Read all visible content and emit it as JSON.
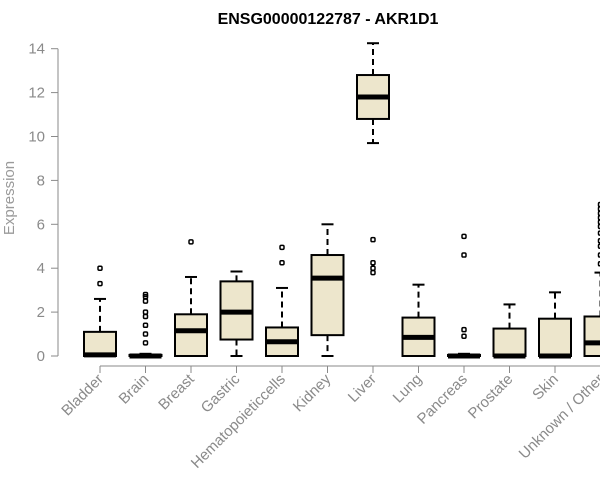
{
  "chart_data": {
    "type": "box",
    "title": "ENSG00000122787 - AKR1D1",
    "xlabel": "",
    "ylabel": "Expression",
    "ylim": [
      0,
      14.5
    ],
    "yticks": [
      0,
      2,
      4,
      6,
      8,
      10,
      12,
      14
    ],
    "grid": false,
    "categories": [
      "Bladder",
      "Brain",
      "Breast",
      "Gastric",
      "Hematopoieticcells",
      "Kidney",
      "Liver",
      "Lung",
      "Pancreas",
      "Prostate",
      "Skin",
      "Unknown / Other"
    ],
    "boxes": [
      {
        "min": 0,
        "q1": 0,
        "median": 0.05,
        "q3": 1.1,
        "max": 2.6,
        "outliers": [
          3.3,
          4.0
        ]
      },
      {
        "min": 0,
        "q1": 0,
        "median": 0.0,
        "q3": 0.05,
        "max": 0.1,
        "outliers": [
          0.6,
          1.0,
          1.4,
          1.8,
          2.0,
          2.5,
          2.7,
          2.8
        ]
      },
      {
        "min": 0,
        "q1": 0,
        "median": 1.15,
        "q3": 1.9,
        "max": 3.6,
        "outliers": [
          5.2
        ]
      },
      {
        "min": 0,
        "q1": 0.75,
        "median": 2.0,
        "q3": 3.4,
        "max": 3.85,
        "outliers": []
      },
      {
        "min": 0,
        "q1": 0,
        "median": 0.65,
        "q3": 1.3,
        "max": 3.1,
        "outliers": [
          4.25,
          4.95
        ]
      },
      {
        "min": 0,
        "q1": 0.95,
        "median": 3.55,
        "q3": 4.6,
        "max": 6.0,
        "outliers": []
      },
      {
        "min": 9.7,
        "q1": 10.8,
        "median": 11.8,
        "q3": 12.8,
        "max": 14.25,
        "outliers": [
          3.8,
          4.0,
          4.25,
          5.3
        ]
      },
      {
        "min": 0,
        "q1": 0,
        "median": 0.85,
        "q3": 1.75,
        "max": 3.25,
        "outliers": []
      },
      {
        "min": 0,
        "q1": 0,
        "median": 0.0,
        "q3": 0.05,
        "max": 0.1,
        "outliers": [
          0.9,
          1.2,
          4.6,
          5.45
        ]
      },
      {
        "min": 0,
        "q1": 0,
        "median": 0.0,
        "q3": 1.25,
        "max": 2.35,
        "outliers": []
      },
      {
        "min": 0,
        "q1": 0,
        "median": 0.0,
        "q3": 1.7,
        "max": 2.9,
        "outliers": []
      },
      {
        "min": 0,
        "q1": 0,
        "median": 0.6,
        "q3": 1.8,
        "max": 3.8,
        "outliers": [
          4.2,
          4.6,
          5.0,
          5.25,
          5.6,
          5.9,
          6.1,
          6.3,
          6.5,
          6.7,
          6.9
        ]
      }
    ]
  }
}
